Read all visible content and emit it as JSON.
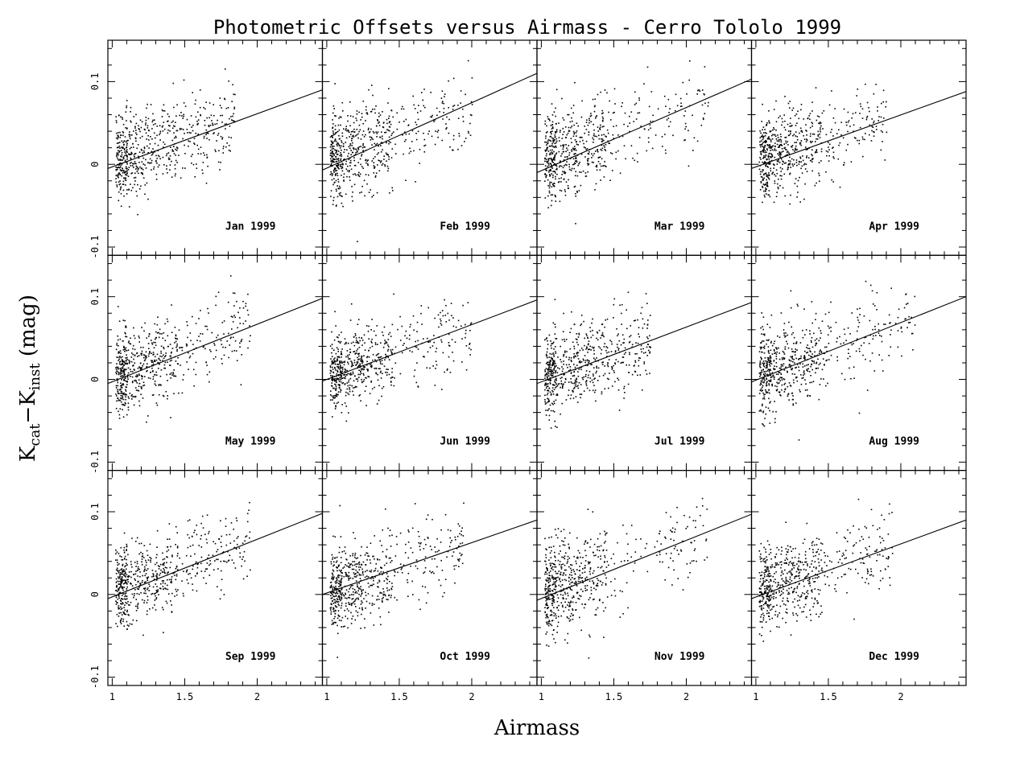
{
  "chart": {
    "title": "Photometric Offsets versus Airmass - Cerro Tololo 1999",
    "xlabel": "Airmass",
    "ylabel_main": "K",
    "ylabel_sub1": "cat",
    "ylabel_mid": "−K",
    "ylabel_sub2": "inst",
    "ylabel_unit": " (mag)"
  },
  "chart_data": {
    "type": "scatter",
    "layout": "4x3 panel grid",
    "xlim": [
      0.97,
      2.45
    ],
    "ylim": [
      -0.11,
      0.15
    ],
    "xticks": [
      1,
      1.5,
      2
    ],
    "xtick_labels": [
      "1",
      "1.5",
      "2"
    ],
    "yticks": [
      -0.1,
      0,
      0.1
    ],
    "ytick_labels": [
      "-0.1",
      "0",
      "0.1"
    ],
    "panels": [
      {
        "label": "Jan 1999",
        "fit": [
          [
            0.97,
            -0.005
          ],
          [
            2.45,
            0.09
          ]
        ],
        "scatter": {
          "center": 0.005,
          "slope": 0.06,
          "spread": 0.025,
          "xmax": 1.85
        }
      },
      {
        "label": "Feb 1999",
        "fit": [
          [
            0.97,
            -0.007
          ],
          [
            2.45,
            0.11
          ]
        ],
        "scatter": {
          "center": 0.005,
          "slope": 0.065,
          "spread": 0.027,
          "xmax": 2.0
        }
      },
      {
        "label": "Mar 1999",
        "fit": [
          [
            0.97,
            -0.01
          ],
          [
            2.45,
            0.103
          ]
        ],
        "scatter": {
          "center": 0.005,
          "slope": 0.065,
          "spread": 0.027,
          "xmax": 2.15
        }
      },
      {
        "label": "Apr 1999",
        "fit": [
          [
            0.97,
            -0.005
          ],
          [
            2.45,
            0.088
          ]
        ],
        "scatter": {
          "center": 0.005,
          "slope": 0.06,
          "spread": 0.025,
          "xmax": 1.9
        }
      },
      {
        "label": "May 1999",
        "fit": [
          [
            0.97,
            -0.005
          ],
          [
            2.45,
            0.098
          ]
        ],
        "scatter": {
          "center": 0.005,
          "slope": 0.06,
          "spread": 0.025,
          "xmax": 1.95
        }
      },
      {
        "label": "Jun 1999",
        "fit": [
          [
            0.97,
            -0.002
          ],
          [
            2.45,
            0.096
          ]
        ],
        "scatter": {
          "center": 0.005,
          "slope": 0.055,
          "spread": 0.022,
          "xmax": 2.0
        }
      },
      {
        "label": "Jul 1999",
        "fit": [
          [
            0.97,
            -0.005
          ],
          [
            2.45,
            0.093
          ]
        ],
        "scatter": {
          "center": 0.005,
          "slope": 0.055,
          "spread": 0.025,
          "xmax": 1.75
        }
      },
      {
        "label": "Aug 1999",
        "fit": [
          [
            0.97,
            -0.003
          ],
          [
            2.45,
            0.1
          ]
        ],
        "scatter": {
          "center": 0.005,
          "slope": 0.06,
          "spread": 0.025,
          "xmax": 2.1
        }
      },
      {
        "label": "Sep 1999",
        "fit": [
          [
            0.97,
            -0.005
          ],
          [
            2.45,
            0.098
          ]
        ],
        "scatter": {
          "center": 0.005,
          "slope": 0.06,
          "spread": 0.024,
          "xmax": 1.95
        }
      },
      {
        "label": "Oct 1999",
        "fit": [
          [
            0.97,
            0.0
          ],
          [
            2.45,
            0.09
          ]
        ],
        "scatter": {
          "center": 0.005,
          "slope": 0.055,
          "spread": 0.025,
          "xmax": 1.95
        }
      },
      {
        "label": "Nov 1999",
        "fit": [
          [
            0.97,
            -0.007
          ],
          [
            2.45,
            0.097
          ]
        ],
        "scatter": {
          "center": 0.005,
          "slope": 0.06,
          "spread": 0.027,
          "xmax": 2.15
        }
      },
      {
        "label": "Dec 1999",
        "fit": [
          [
            0.97,
            -0.005
          ],
          [
            2.45,
            0.09
          ]
        ],
        "scatter": {
          "center": 0.005,
          "slope": 0.055,
          "spread": 0.025,
          "xmax": 1.95
        }
      }
    ]
  }
}
